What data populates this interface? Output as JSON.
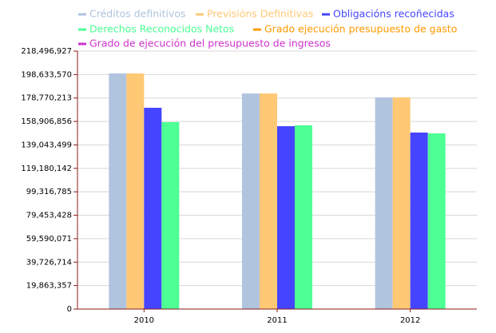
{
  "chart_data": {
    "type": "bar",
    "categories": [
      "2010",
      "2011",
      "2012"
    ],
    "series": [
      {
        "name": "Créditos definitivos",
        "color": "#b0c4de",
        "type": "bar",
        "values": [
          199600000,
          182600000,
          179300000
        ]
      },
      {
        "name": "Previsións Definitivas",
        "color": "#ffc875",
        "type": "bar",
        "values": [
          199600000,
          182600000,
          179300000
        ]
      },
      {
        "name": "Obligacións recoñecidas",
        "color": "#4545ff",
        "type": "bar",
        "values": [
          170500000,
          154900000,
          149500000
        ]
      },
      {
        "name": "Derechos Reconocidos Netos",
        "color": "#4dff94",
        "type": "bar",
        "values": [
          158300000,
          155600000,
          148800000
        ]
      },
      {
        "name": "Grado ejecución presupuesto de gasto",
        "color": "#ff9900",
        "type": "line",
        "values": [
          null,
          null,
          null
        ]
      },
      {
        "name": "Grado de ejecución del presupuesto de ingresos",
        "color": "#cc33cc",
        "type": "line",
        "values": [
          null,
          null,
          null
        ]
      }
    ],
    "ylim": [
      0,
      218496927
    ],
    "yticks": [
      0,
      {
        "value": 19863357,
        "label": "19,863,357"
      },
      {
        "value": 39726714,
        "label": "39,726,714"
      },
      {
        "value": 59590071,
        "label": "59,590,071"
      },
      {
        "value": 79453428,
        "label": "79,453,428"
      },
      {
        "value": 99316785,
        "label": "99,316,785"
      },
      {
        "value": 119180142,
        "label": "119,180,142"
      },
      {
        "value": 139043499,
        "label": "139,043,499"
      },
      {
        "value": 158906856,
        "label": "158,906,856"
      },
      {
        "value": 178770213,
        "label": "178,770,213"
      },
      {
        "value": 198633570,
        "label": "198,633,570"
      },
      {
        "value": 218496927,
        "label": "218,496,927"
      }
    ],
    "grid": true
  }
}
